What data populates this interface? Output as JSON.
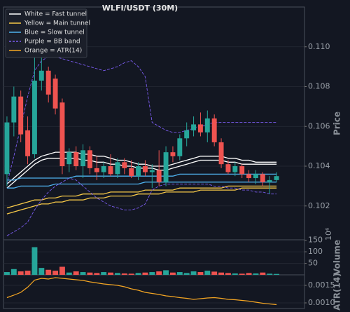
{
  "chart_data": [
    {
      "type": "candlestick",
      "title": "WLFI/USDT (30M)",
      "ylabel": "Price",
      "up_color": "#26a69a",
      "down_color": "#ef5350",
      "open": [
        0.1036,
        0.1062,
        0.1075,
        0.1058,
        0.1046,
        0.1083,
        0.1088,
        0.1084,
        0.1072,
        0.1041,
        0.1047,
        0.104,
        0.1048,
        0.1039,
        0.1037,
        0.104,
        0.1036,
        0.1042,
        0.1039,
        0.1035,
        0.104,
        0.1037,
        0.1038,
        0.1032,
        0.1047,
        0.1045,
        0.1054,
        0.1058,
        0.1061,
        0.1057,
        0.1064,
        0.1052,
        0.1041,
        0.1037,
        0.104,
        0.1036,
        0.1034,
        0.1036,
        0.1032,
        0.1033
      ],
      "high": [
        0.1065,
        0.108,
        0.1078,
        0.1065,
        0.1096,
        0.1104,
        0.109,
        0.1086,
        0.1074,
        0.1049,
        0.105,
        0.1051,
        0.105,
        0.1045,
        0.1042,
        0.1046,
        0.1044,
        0.1044,
        0.1043,
        0.1042,
        0.1043,
        0.1041,
        0.1048,
        0.105,
        0.105,
        0.1056,
        0.1062,
        0.1065,
        0.1067,
        0.1068,
        0.1066,
        0.1054,
        0.1043,
        0.1042,
        0.1041,
        0.1038,
        0.1038,
        0.1037,
        0.1035,
        0.1037
      ],
      "low": [
        0.103,
        0.1055,
        0.1052,
        0.1041,
        0.1044,
        0.1078,
        0.1072,
        0.1066,
        0.1036,
        0.1037,
        0.1038,
        0.1034,
        0.1036,
        0.1033,
        0.1034,
        0.1035,
        0.1034,
        0.1036,
        0.1034,
        0.1033,
        0.1035,
        0.1029,
        0.103,
        0.103,
        0.1042,
        0.1043,
        0.105,
        0.1055,
        0.1055,
        0.1052,
        0.105,
        0.1039,
        0.1036,
        0.1035,
        0.1034,
        0.1032,
        0.1031,
        0.103,
        0.1026,
        0.1032
      ],
      "close": [
        0.1062,
        0.1075,
        0.1056,
        0.1045,
        0.1083,
        0.1088,
        0.1076,
        0.1069,
        0.104,
        0.1047,
        0.104,
        0.1048,
        0.1039,
        0.1037,
        0.104,
        0.1036,
        0.1042,
        0.1039,
        0.1035,
        0.104,
        0.1037,
        0.1038,
        0.1032,
        0.1047,
        0.1045,
        0.1054,
        0.1058,
        0.1061,
        0.1057,
        0.1064,
        0.1052,
        0.1041,
        0.1037,
        0.104,
        0.1036,
        0.1034,
        0.1036,
        0.1032,
        0.1033,
        0.1035
      ],
      "series": [
        {
          "name": "White = Fast tunnel",
          "color": "#ffffff",
          "dashed": false,
          "upper": [
            0.1031,
            0.1034,
            0.1037,
            0.104,
            0.1043,
            0.1045,
            0.1046,
            0.1047,
            0.1047,
            0.1047,
            0.1047,
            0.1046,
            0.1046,
            0.1045,
            0.1045,
            0.1044,
            0.1043,
            0.1043,
            0.1042,
            0.1041,
            0.1041,
            0.104,
            0.104,
            0.104,
            0.1041,
            0.1042,
            0.1043,
            0.1044,
            0.1045,
            0.1045,
            0.1045,
            0.1045,
            0.1044,
            0.1044,
            0.1043,
            0.1043,
            0.1042,
            0.1042,
            0.1042,
            0.1042
          ],
          "lower": [
            0.1029,
            0.1032,
            0.1035,
            0.1038,
            0.1041,
            0.1043,
            0.1044,
            0.1044,
            0.1044,
            0.1044,
            0.1044,
            0.1043,
            0.1043,
            0.1042,
            0.1042,
            0.1041,
            0.1041,
            0.104,
            0.104,
            0.1039,
            0.1039,
            0.1039,
            0.1038,
            0.1038,
            0.1039,
            0.104,
            0.1041,
            0.1042,
            0.1043,
            0.1043,
            0.1043,
            0.1043,
            0.1042,
            0.1042,
            0.1041,
            0.1041,
            0.1041,
            0.1041,
            0.1041,
            0.1041
          ]
        },
        {
          "name": "Yellow = Main tunnel",
          "color": "#f7c948",
          "dashed": false,
          "upper": [
            0.1019,
            0.102,
            0.1021,
            0.1022,
            0.1023,
            0.1023,
            0.1024,
            0.1024,
            0.1025,
            0.1025,
            0.1025,
            0.1026,
            0.1026,
            0.1026,
            0.1026,
            0.1027,
            0.1027,
            0.1027,
            0.1027,
            0.1027,
            0.1028,
            0.1028,
            0.1028,
            0.1028,
            0.1028,
            0.1029,
            0.1029,
            0.1029,
            0.1029,
            0.1029,
            0.1029,
            0.1029,
            0.103,
            0.103,
            0.103,
            0.103,
            0.103,
            0.103,
            0.103,
            0.103
          ],
          "lower": [
            0.1016,
            0.1017,
            0.1018,
            0.1019,
            0.102,
            0.1021,
            0.1021,
            0.1022,
            0.1022,
            0.1023,
            0.1023,
            0.1023,
            0.1024,
            0.1024,
            0.1024,
            0.1025,
            0.1025,
            0.1025,
            0.1025,
            0.1026,
            0.1026,
            0.1026,
            0.1026,
            0.1027,
            0.1027,
            0.1027,
            0.1027,
            0.1027,
            0.1028,
            0.1028,
            0.1028,
            0.1028,
            0.1028,
            0.1028,
            0.1029,
            0.1029,
            0.1029,
            0.1029,
            0.1029,
            0.1029
          ]
        },
        {
          "name": "Blue = Slow tunnel",
          "color": "#4fb3f0",
          "dashed": false,
          "upper": [
            0.1033,
            0.1033,
            0.1034,
            0.1034,
            0.1034,
            0.1034,
            0.1034,
            0.1034,
            0.1034,
            0.1034,
            0.1035,
            0.1035,
            0.1035,
            0.1035,
            0.1035,
            0.1035,
            0.1035,
            0.1035,
            0.1035,
            0.1035,
            0.1035,
            0.1035,
            0.1035,
            0.1035,
            0.1035,
            0.1036,
            0.1036,
            0.1036,
            0.1036,
            0.1036,
            0.1036,
            0.1036,
            0.1036,
            0.1036,
            0.1036,
            0.1036,
            0.1036,
            0.1036,
            0.1036,
            0.1036
          ],
          "lower": [
            0.1029,
            0.1029,
            0.103,
            0.103,
            0.103,
            0.103,
            0.103,
            0.1031,
            0.1031,
            0.1031,
            0.1031,
            0.1031,
            0.1031,
            0.1031,
            0.1031,
            0.1031,
            0.1031,
            0.1031,
            0.1031,
            0.1031,
            0.1032,
            0.1032,
            0.1032,
            0.1032,
            0.1032,
            0.1032,
            0.1032,
            0.1032,
            0.1032,
            0.1032,
            0.1032,
            0.1032,
            0.1032,
            0.1032,
            0.1032,
            0.1032,
            0.1032,
            0.1032,
            0.1032,
            0.1032
          ]
        },
        {
          "name": "Purple = BB band",
          "color": "#7b5cf0",
          "dashed": true,
          "upper": [
            0.1031,
            0.1045,
            0.106,
            0.1075,
            0.1088,
            0.1093,
            0.1095,
            0.1095,
            0.1094,
            0.1093,
            0.1092,
            0.1091,
            0.109,
            0.1089,
            0.1088,
            0.1089,
            0.109,
            0.1092,
            0.1093,
            0.109,
            0.1085,
            0.1062,
            0.106,
            0.1058,
            0.1057,
            0.1057,
            0.1058,
            0.1059,
            0.106,
            0.1061,
            0.1062,
            0.1062,
            0.1062,
            0.1062,
            0.1062,
            0.1062,
            0.1062,
            0.1062,
            0.1062,
            0.1062
          ],
          "lower": [
            0.1005,
            0.1007,
            0.1009,
            0.1012,
            0.1018,
            0.1023,
            0.1027,
            0.103,
            0.1032,
            0.1034,
            0.1033,
            0.103,
            0.1027,
            0.1024,
            0.1022,
            0.102,
            0.1019,
            0.1018,
            0.1018,
            0.1019,
            0.1021,
            0.1028,
            0.103,
            0.1031,
            0.1031,
            0.1031,
            0.1031,
            0.1031,
            0.1031,
            0.1031,
            0.103,
            0.103,
            0.1029,
            0.1029,
            0.1028,
            0.1028,
            0.1027,
            0.1027,
            0.1026,
            0.1026
          ]
        }
      ],
      "ylim": [
        0.1003,
        0.112
      ],
      "yticks": [
        0.102,
        0.104,
        0.106,
        0.108,
        {
          "value": 0.11,
          "label": "0.110"
        }
      ],
      "grid": true
    },
    {
      "type": "bar",
      "ylabel": "Volume",
      "offset_label": "10⁶",
      "values": [
        12,
        25,
        15,
        18,
        120,
        30,
        22,
        18,
        35,
        10,
        15,
        12,
        10,
        8,
        12,
        10,
        8,
        6,
        5,
        8,
        10,
        12,
        15,
        20,
        10,
        12,
        8,
        15,
        12,
        18,
        14,
        10,
        8,
        6,
        5,
        8,
        6,
        10,
        5,
        4
      ],
      "ylim": [
        0,
        152
      ],
      "yticks": [
        50,
        100,
        150
      ],
      "grid": true
    },
    {
      "type": "line",
      "ylabel": "ATR(14)",
      "series": [
        {
          "name": "Orange = ATR(14)",
          "color": "#f5a623",
          "values": [
            0.00115,
            0.00122,
            0.0013,
            0.00145,
            0.00165,
            0.0017,
            0.00168,
            0.00172,
            0.0017,
            0.00168,
            0.00166,
            0.00164,
            0.0016,
            0.00157,
            0.00154,
            0.00152,
            0.0015,
            0.00146,
            0.0014,
            0.00136,
            0.0013,
            0.00127,
            0.00124,
            0.0012,
            0.00118,
            0.00115,
            0.00113,
            0.0011,
            0.00112,
            0.00114,
            0.00115,
            0.00113,
            0.0011,
            0.00109,
            0.00107,
            0.00105,
            0.00102,
            0.00099,
            0.00097,
            0.00095
          ]
        }
      ],
      "ylim": [
        0.00084,
        0.0018
      ],
      "yticks": [
        {
          "value": 0.001,
          "label": "0.0010"
        },
        0.0015
      ],
      "grid": true
    }
  ]
}
